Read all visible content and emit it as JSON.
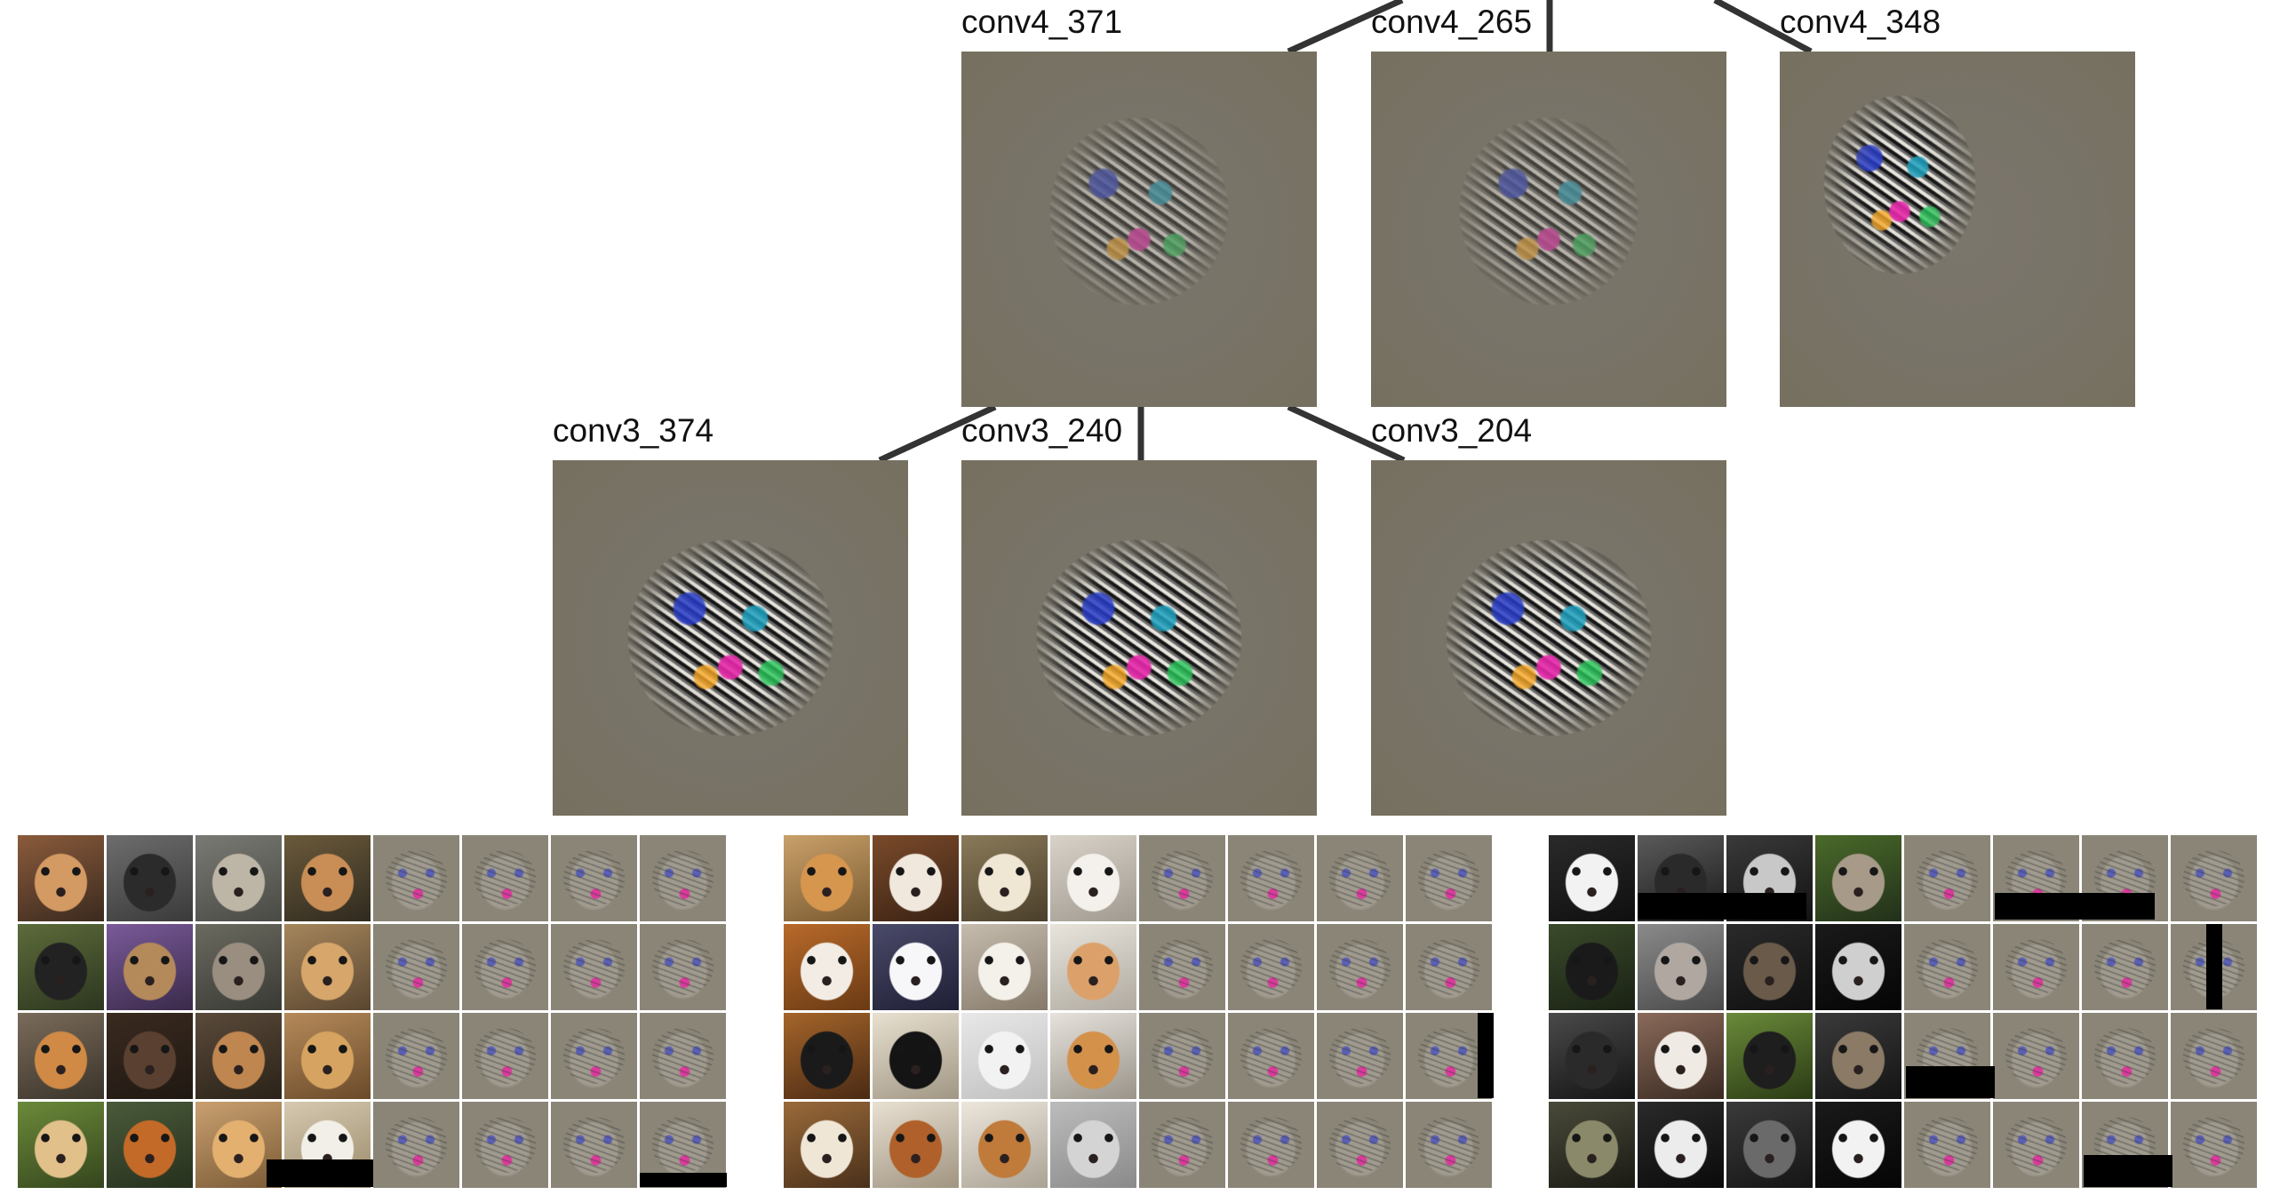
{
  "diagram": {
    "layers": [
      {
        "row": "conv4",
        "nodes": [
          {
            "id": "conv4_371",
            "label": "conv4_371",
            "style": "faint-face"
          },
          {
            "id": "conv4_265",
            "label": "conv4_265",
            "style": "faint-face"
          },
          {
            "id": "conv4_348",
            "label": "conv4_348",
            "style": "swirl"
          }
        ]
      },
      {
        "row": "conv3",
        "nodes": [
          {
            "id": "conv3_374",
            "label": "conv3_374",
            "style": "dense"
          },
          {
            "id": "conv3_240",
            "label": "conv3_240",
            "style": "dense"
          },
          {
            "id": "conv3_204",
            "label": "conv3_204",
            "style": "dense"
          }
        ]
      }
    ],
    "edges": [
      {
        "from": "conv3_374",
        "to": "conv4_371"
      },
      {
        "from": "conv3_240",
        "to": "conv4_371"
      },
      {
        "from": "conv3_204",
        "to": "conv4_371"
      }
    ],
    "edge_color": "#333333"
  },
  "sample_grids": [
    {
      "id": "grid-left",
      "photos": [
        {
          "fg": "#d49a63",
          "bg1": "#8a5b3b",
          "bg2": "#3b2a1f"
        },
        {
          "fg": "#2b2b2b",
          "bg1": "#6d6d6d",
          "bg2": "#3a3a3a"
        },
        {
          "fg": "#bdb6a6",
          "bg1": "#7a7a74",
          "bg2": "#4a4a45"
        },
        {
          "fg": "#c98e55",
          "bg1": "#6b5a3b",
          "bg2": "#2f2a1f"
        },
        {
          "fg": "#222222",
          "bg1": "#5c6b3a",
          "bg2": "#2d3620"
        },
        {
          "fg": "#b58a5a",
          "bg1": "#7a5a9a",
          "bg2": "#3a2a4a"
        },
        {
          "fg": "#9a8e80",
          "bg1": "#6a6a60",
          "bg2": "#3a3a35"
        },
        {
          "fg": "#d6a66b",
          "bg1": "#a5865c",
          "bg2": "#5a4630"
        },
        {
          "fg": "#d08a45",
          "bg1": "#7a6b5a",
          "bg2": "#3a342a"
        },
        {
          "fg": "#5a4030",
          "bg1": "#3a2a20",
          "bg2": "#1f1812"
        },
        {
          "fg": "#c08650",
          "bg1": "#5a4a3a",
          "bg2": "#2a2218"
        },
        {
          "fg": "#d6a460",
          "bg1": "#b58a5a",
          "bg2": "#6a4a2a"
        },
        {
          "fg": "#e2c08a",
          "bg1": "#6b8a3a",
          "bg2": "#35451d"
        },
        {
          "fg": "#c46a28",
          "bg1": "#4a5a3a",
          "bg2": "#26301d"
        },
        {
          "fg": "#e4b070",
          "bg1": "#c9a070",
          "bg2": "#7a5a35"
        },
        {
          "fg": "#f2efe8",
          "bg1": "#d6c9b0",
          "bg2": "#9a8a6a"
        }
      ],
      "black_bars": [
        "bottom-left-tail",
        "bottom-right-vis"
      ]
    },
    {
      "id": "grid-middle",
      "photos": [
        {
          "fg": "#d6964e",
          "bg1": "#c9a06a",
          "bg2": "#7a5a30"
        },
        {
          "fg": "#f0e8dc",
          "bg1": "#7a4a2a",
          "bg2": "#3a2214"
        },
        {
          "fg": "#efe6d4",
          "bg1": "#8a7a5a",
          "bg2": "#4a3f2a"
        },
        {
          "fg": "#f4f1ec",
          "bg1": "#d8d2c8",
          "bg2": "#a09a90"
        },
        {
          "fg": "#f2ece4",
          "bg1": "#b86a2a",
          "bg2": "#6a3a14"
        },
        {
          "fg": "#f7f7fa",
          "bg1": "#4a4a6a",
          "bg2": "#1f1f35"
        },
        {
          "fg": "#f4f1ea",
          "bg1": "#c6bcae",
          "bg2": "#857a6a"
        },
        {
          "fg": "#dca16a",
          "bg1": "#e8e4dc",
          "bg2": "#b0aaa0"
        },
        {
          "fg": "#1a1a1a",
          "bg1": "#a5652a",
          "bg2": "#4a2a14"
        },
        {
          "fg": "#141414",
          "bg1": "#e8e0d0",
          "bg2": "#a09684"
        },
        {
          "fg": "#f2f2f2",
          "bg1": "#e8e8e8",
          "bg2": "#c0c0c0"
        },
        {
          "fg": "#d4914a",
          "bg1": "#e6e2dc",
          "bg2": "#9a948a"
        },
        {
          "fg": "#f0e6d6",
          "bg1": "#9a6a3a",
          "bg2": "#4a301a"
        },
        {
          "fg": "#b0602a",
          "bg1": "#e8e0d2",
          "bg2": "#a09480"
        },
        {
          "fg": "#c07a3a",
          "bg1": "#ece6dc",
          "bg2": "#aaa294"
        },
        {
          "fg": "#d4d4d4",
          "bg1": "#bcbcbc",
          "bg2": "#8a8a8a"
        }
      ],
      "black_bars": [
        "right-edge-vis"
      ]
    },
    {
      "id": "grid-right",
      "photos": [
        {
          "fg": "#f2f2f2",
          "bg1": "#2a2a2a",
          "bg2": "#0f0f0f"
        },
        {
          "fg": "#2a2a2a",
          "bg1": "#5a5a5a",
          "bg2": "#1a1a1a"
        },
        {
          "fg": "#c8c8c8",
          "bg1": "#3a3a3a",
          "bg2": "#121212"
        },
        {
          "fg": "#a89a88",
          "bg1": "#4a6a2a",
          "bg2": "#22301a"
        },
        {
          "fg": "#1a1a1a",
          "bg1": "#3a4a2a",
          "bg2": "#1a2214"
        },
        {
          "fg": "#b0a8a0",
          "bg1": "#8a8a8a",
          "bg2": "#4a4a4a"
        },
        {
          "fg": "#6a5a4a",
          "bg1": "#2a2a2a",
          "bg2": "#101010"
        },
        {
          "fg": "#cfcfcf",
          "bg1": "#1a1a1a",
          "bg2": "#050505"
        },
        {
          "fg": "#2a2a2a",
          "bg1": "#4a4a4a",
          "bg2": "#141414"
        },
        {
          "fg": "#f0eae4",
          "bg1": "#8a6a5a",
          "bg2": "#3a2a22"
        },
        {
          "fg": "#1e1e1e",
          "bg1": "#6a8a3a",
          "bg2": "#2a3a14"
        },
        {
          "fg": "#8a7a66",
          "bg1": "#3a3a3a",
          "bg2": "#141414"
        },
        {
          "fg": "#8a8a6a",
          "bg1": "#4a4a3a",
          "bg2": "#1a1a14"
        },
        {
          "fg": "#ececec",
          "bg1": "#2a2a2a",
          "bg2": "#0a0a0a"
        },
        {
          "fg": "#6a6a6a",
          "bg1": "#3a3a3a",
          "bg2": "#151515"
        },
        {
          "fg": "#f2f2f2",
          "bg1": "#1a1a1a",
          "bg2": "#050505"
        }
      ],
      "black_bars": [
        "scattered-right"
      ]
    }
  ]
}
